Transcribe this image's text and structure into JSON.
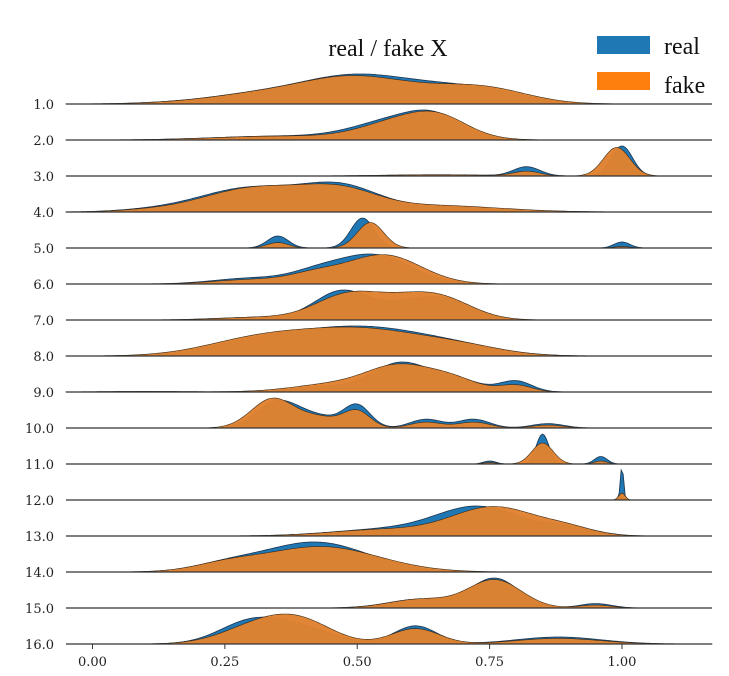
{
  "chart_data": {
    "type": "area",
    "title": "real / fake X",
    "xlabel": "",
    "ylabel": "",
    "xlim": [
      -0.05,
      1.17
    ],
    "xticks": [
      "0.00",
      "0.25",
      "0.50",
      "0.75",
      "1.00"
    ],
    "xtick_values": [
      0.0,
      0.25,
      0.5,
      0.75,
      1.0
    ],
    "row_labels": [
      "1.0",
      "2.0",
      "3.0",
      "4.0",
      "5.0",
      "6.0",
      "7.0",
      "8.0",
      "9.0",
      "10.0",
      "11.0",
      "12.0",
      "13.0",
      "14.0",
      "15.0",
      "16.0"
    ],
    "legend": {
      "placement": "top-right",
      "entries": [
        {
          "name": "real",
          "color": "#1f77b4"
        },
        {
          "name": "fake",
          "color": "#ff7f0e"
        }
      ]
    },
    "colors": {
      "real": "#1f77b4",
      "fake": "#e0822f",
      "baseline": "#333333"
    },
    "grid": false,
    "series": [
      {
        "name": "real",
        "rows": [
          [
            [
              0.15,
              0.03,
              0.08
            ],
            [
              0.32,
              0.45,
              0.1
            ],
            [
              0.48,
              0.95,
              0.09
            ],
            [
              0.62,
              0.7,
              0.1
            ],
            [
              0.75,
              0.4,
              0.08
            ]
          ],
          [
            [
              0.35,
              0.15,
              0.12
            ],
            [
              0.58,
              0.8,
              0.08
            ],
            [
              0.65,
              0.55,
              0.05
            ]
          ],
          [
            [
              0.82,
              0.3,
              0.025
            ],
            [
              1.0,
              1.0,
              0.02
            ],
            [
              0.65,
              0.04,
              0.1
            ]
          ],
          [
            [
              0.3,
              0.95,
              0.1
            ],
            [
              0.47,
              0.85,
              0.07
            ],
            [
              0.65,
              0.2,
              0.12
            ],
            [
              0.1,
              0.05,
              0.06
            ]
          ],
          [
            [
              0.35,
              0.4,
              0.02
            ],
            [
              0.51,
              1.0,
              0.022
            ],
            [
              1.0,
              0.2,
              0.015
            ]
          ],
          [
            [
              0.3,
              0.2,
              0.07
            ],
            [
              0.53,
              1.0,
              0.07
            ],
            [
              0.42,
              0.3,
              0.05
            ]
          ],
          [
            [
              0.47,
              1.0,
              0.05
            ],
            [
              0.6,
              0.6,
              0.06
            ],
            [
              0.68,
              0.5,
              0.05
            ],
            [
              0.32,
              0.1,
              0.08
            ]
          ],
          [
            [
              0.32,
              0.5,
              0.1
            ],
            [
              0.52,
              1.0,
              0.12
            ],
            [
              0.7,
              0.2,
              0.08
            ]
          ],
          [
            [
              0.58,
              1.0,
              0.05
            ],
            [
              0.45,
              0.2,
              0.08
            ],
            [
              0.68,
              0.5,
              0.05
            ],
            [
              0.8,
              0.4,
              0.03
            ],
            [
              0.1,
              0.02,
              0.08
            ]
          ],
          [
            [
              0.35,
              0.9,
              0.04
            ],
            [
              0.5,
              0.75,
              0.025
            ],
            [
              0.43,
              0.35,
              0.04
            ],
            [
              0.63,
              0.3,
              0.03
            ],
            [
              0.72,
              0.3,
              0.03
            ],
            [
              0.86,
              0.15,
              0.03
            ]
          ],
          [
            [
              0.85,
              1.0,
              0.012
            ],
            [
              0.96,
              0.25,
              0.012
            ],
            [
              0.75,
              0.1,
              0.012
            ]
          ],
          [
            [
              1.0,
              1.0,
              0.003
            ]
          ],
          [
            [
              0.73,
              0.9,
              0.08
            ],
            [
              0.55,
              0.2,
              0.1
            ],
            [
              0.9,
              0.25,
              0.05
            ]
          ],
          [
            [
              0.42,
              1.0,
              0.1
            ],
            [
              0.25,
              0.2,
              0.06
            ]
          ],
          [
            [
              0.76,
              1.0,
              0.045
            ],
            [
              0.62,
              0.3,
              0.06
            ],
            [
              0.95,
              0.15,
              0.03
            ]
          ],
          [
            [
              0.3,
              0.8,
              0.06
            ],
            [
              0.4,
              0.5,
              0.06
            ],
            [
              0.61,
              0.65,
              0.04
            ],
            [
              0.88,
              0.25,
              0.08
            ]
          ]
        ]
      },
      {
        "name": "fake",
        "rows": [
          [
            [
              0.15,
              0.03,
              0.08
            ],
            [
              0.32,
              0.45,
              0.1
            ],
            [
              0.48,
              0.95,
              0.09
            ],
            [
              0.62,
              0.55,
              0.1
            ],
            [
              0.75,
              0.55,
              0.08
            ]
          ],
          [
            [
              0.35,
              0.15,
              0.12
            ],
            [
              0.6,
              0.85,
              0.08
            ],
            [
              0.66,
              0.4,
              0.05
            ]
          ],
          [
            [
              0.82,
              0.15,
              0.025
            ],
            [
              0.99,
              0.95,
              0.025
            ],
            [
              0.65,
              0.04,
              0.1
            ]
          ],
          [
            [
              0.31,
              0.95,
              0.1
            ],
            [
              0.47,
              0.7,
              0.07
            ],
            [
              0.65,
              0.25,
              0.12
            ],
            [
              0.1,
              0.05,
              0.06
            ]
          ],
          [
            [
              0.35,
              0.18,
              0.02
            ],
            [
              0.525,
              0.85,
              0.025
            ],
            [
              1.0,
              0.05,
              0.015
            ]
          ],
          [
            [
              0.3,
              0.15,
              0.07
            ],
            [
              0.55,
              1.0,
              0.07
            ],
            [
              0.42,
              0.3,
              0.05
            ]
          ],
          [
            [
              0.48,
              0.85,
              0.06
            ],
            [
              0.58,
              0.5,
              0.06
            ],
            [
              0.66,
              0.7,
              0.06
            ],
            [
              0.32,
              0.1,
              0.08
            ]
          ],
          [
            [
              0.31,
              0.55,
              0.1
            ],
            [
              0.51,
              0.95,
              0.12
            ],
            [
              0.7,
              0.25,
              0.08
            ]
          ],
          [
            [
              0.58,
              0.9,
              0.06
            ],
            [
              0.46,
              0.3,
              0.08
            ],
            [
              0.68,
              0.45,
              0.05
            ],
            [
              0.8,
              0.25,
              0.03
            ],
            [
              0.1,
              0.02,
              0.08
            ]
          ],
          [
            [
              0.34,
              1.0,
              0.04
            ],
            [
              0.5,
              0.55,
              0.025
            ],
            [
              0.43,
              0.35,
              0.04
            ],
            [
              0.63,
              0.2,
              0.03
            ],
            [
              0.72,
              0.2,
              0.03
            ],
            [
              0.86,
              0.1,
              0.03
            ]
          ],
          [
            [
              0.85,
              0.7,
              0.02
            ],
            [
              0.96,
              0.1,
              0.012
            ],
            [
              0.75,
              0.05,
              0.012
            ]
          ],
          [
            [
              1.0,
              0.2,
              0.006
            ]
          ],
          [
            [
              0.76,
              0.9,
              0.08
            ],
            [
              0.55,
              0.2,
              0.1
            ],
            [
              0.9,
              0.2,
              0.05
            ]
          ],
          [
            [
              0.43,
              0.85,
              0.11
            ],
            [
              0.25,
              0.2,
              0.06
            ]
          ],
          [
            [
              0.76,
              0.95,
              0.05
            ],
            [
              0.62,
              0.3,
              0.06
            ],
            [
              0.95,
              0.1,
              0.03
            ]
          ],
          [
            [
              0.32,
              0.7,
              0.07
            ],
            [
              0.4,
              0.6,
              0.06
            ],
            [
              0.61,
              0.55,
              0.045
            ],
            [
              0.88,
              0.2,
              0.08
            ]
          ]
        ]
      }
    ]
  }
}
